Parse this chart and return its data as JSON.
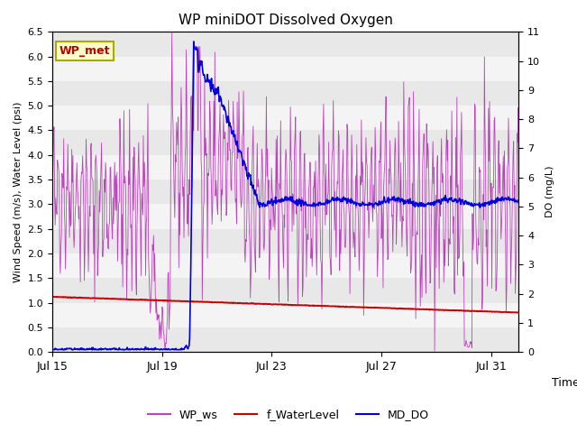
{
  "title": "WP miniDOT Dissolved Oxygen",
  "ylabel_left": "Wind Speed (m/s), Water Level (psi)",
  "ylabel_right": "DO (mg/L)",
  "xlabel": "Time",
  "ylim_left": [
    0.0,
    6.5
  ],
  "ylim_right": [
    0.0,
    11.0
  ],
  "yticks_left": [
    0.0,
    0.5,
    1.0,
    1.5,
    2.0,
    2.5,
    3.0,
    3.5,
    4.0,
    4.5,
    5.0,
    5.5,
    6.0,
    6.5
  ],
  "yticks_right": [
    0.0,
    1.0,
    2.0,
    3.0,
    4.0,
    5.0,
    6.0,
    7.0,
    8.0,
    9.0,
    10.0,
    11.0
  ],
  "xtick_labels": [
    "Jul 15",
    "Jul 19",
    "Jul 23",
    "Jul 27",
    "Jul 31"
  ],
  "xtick_positions": [
    0,
    4,
    8,
    12,
    16
  ],
  "color_ws": "#BB44BB",
  "color_wl": "#CC0000",
  "color_do": "#0000DD",
  "legend_labels": [
    "WP_ws",
    "f_WaterLevel",
    "MD_DO"
  ],
  "wp_met_label": "WP_met",
  "wp_met_bg": "#FFFFCC",
  "wp_met_border": "#AAAA00",
  "wp_met_text_color": "#BB0000",
  "band_colors": [
    "#E8E8E8",
    "#F4F4F4"
  ],
  "figsize": [
    6.4,
    4.8
  ],
  "dpi": 100
}
